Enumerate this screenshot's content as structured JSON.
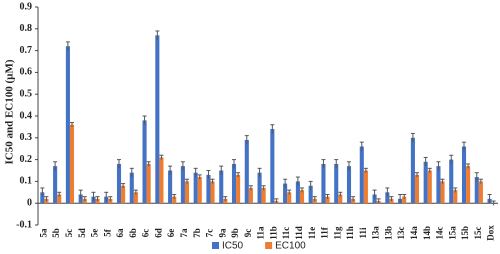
{
  "chart_data": {
    "type": "bar",
    "y_label": "IC50 and EC100 (µM)",
    "categories": [
      "5a",
      "5b",
      "5c",
      "5d",
      "5e",
      "5f",
      "6a",
      "6b",
      "6c",
      "6d",
      "6e",
      "7a",
      "7b",
      "7c",
      "9a",
      "9b",
      "9c",
      "11a",
      "11b",
      "11c",
      "11d",
      "11e",
      "11f",
      "11g",
      "11h",
      "11i",
      "13a",
      "13b",
      "13c",
      "14a",
      "14b",
      "14c",
      "15a",
      "15b",
      "15c",
      "Dox"
    ],
    "series": [
      {
        "name": "IC50",
        "color": "#4472c4",
        "values": [
          0.05,
          0.17,
          0.72,
          0.04,
          0.03,
          0.03,
          0.18,
          0.14,
          0.38,
          0.77,
          0.15,
          0.17,
          0.14,
          0.13,
          0.15,
          0.18,
          0.29,
          0.14,
          0.34,
          0.09,
          0.1,
          0.08,
          0.18,
          0.18,
          0.17,
          0.26,
          0.04,
          0.05,
          0.02,
          0.3,
          0.19,
          0.17,
          0.2,
          0.26,
          0.12,
          0.02
        ],
        "errors": [
          0.02,
          0.02,
          0.02,
          0.02,
          0.02,
          0.02,
          0.02,
          0.02,
          0.02,
          0.02,
          0.02,
          0.02,
          0.02,
          0.02,
          0.02,
          0.02,
          0.02,
          0.02,
          0.02,
          0.02,
          0.02,
          0.02,
          0.02,
          0.02,
          0.02,
          0.02,
          0.02,
          0.02,
          0.02,
          0.02,
          0.02,
          0.02,
          0.02,
          0.02,
          0.02,
          0.02
        ]
      },
      {
        "name": "EC100",
        "color": "#ed7d31",
        "values": [
          0.02,
          0.04,
          0.36,
          0.02,
          0.02,
          0.02,
          0.08,
          0.05,
          0.18,
          0.21,
          0.03,
          0.1,
          0.12,
          0.1,
          0.02,
          0.13,
          0.07,
          0.07,
          0.01,
          0.05,
          0.06,
          0.02,
          0.03,
          0.04,
          0.02,
          0.15,
          0.01,
          0.02,
          0.03,
          0.13,
          0.15,
          0.1,
          0.06,
          0.17,
          0.1,
          0.0
        ],
        "errors": [
          0.01,
          0.01,
          0.01,
          0.01,
          0.01,
          0.01,
          0.01,
          0.01,
          0.01,
          0.01,
          0.01,
          0.01,
          0.01,
          0.01,
          0.01,
          0.01,
          0.01,
          0.01,
          0.01,
          0.01,
          0.01,
          0.01,
          0.01,
          0.01,
          0.01,
          0.01,
          0.01,
          0.01,
          0.01,
          0.01,
          0.01,
          0.01,
          0.01,
          0.01,
          0.01,
          0.01
        ]
      }
    ],
    "ylim": [
      -0.1,
      0.9
    ],
    "yticks": [
      -0.1,
      0,
      0.1,
      0.2,
      0.3,
      0.4,
      0.5,
      0.6,
      0.7,
      0.8,
      0.9
    ],
    "grid": false,
    "legend": "bottom"
  }
}
